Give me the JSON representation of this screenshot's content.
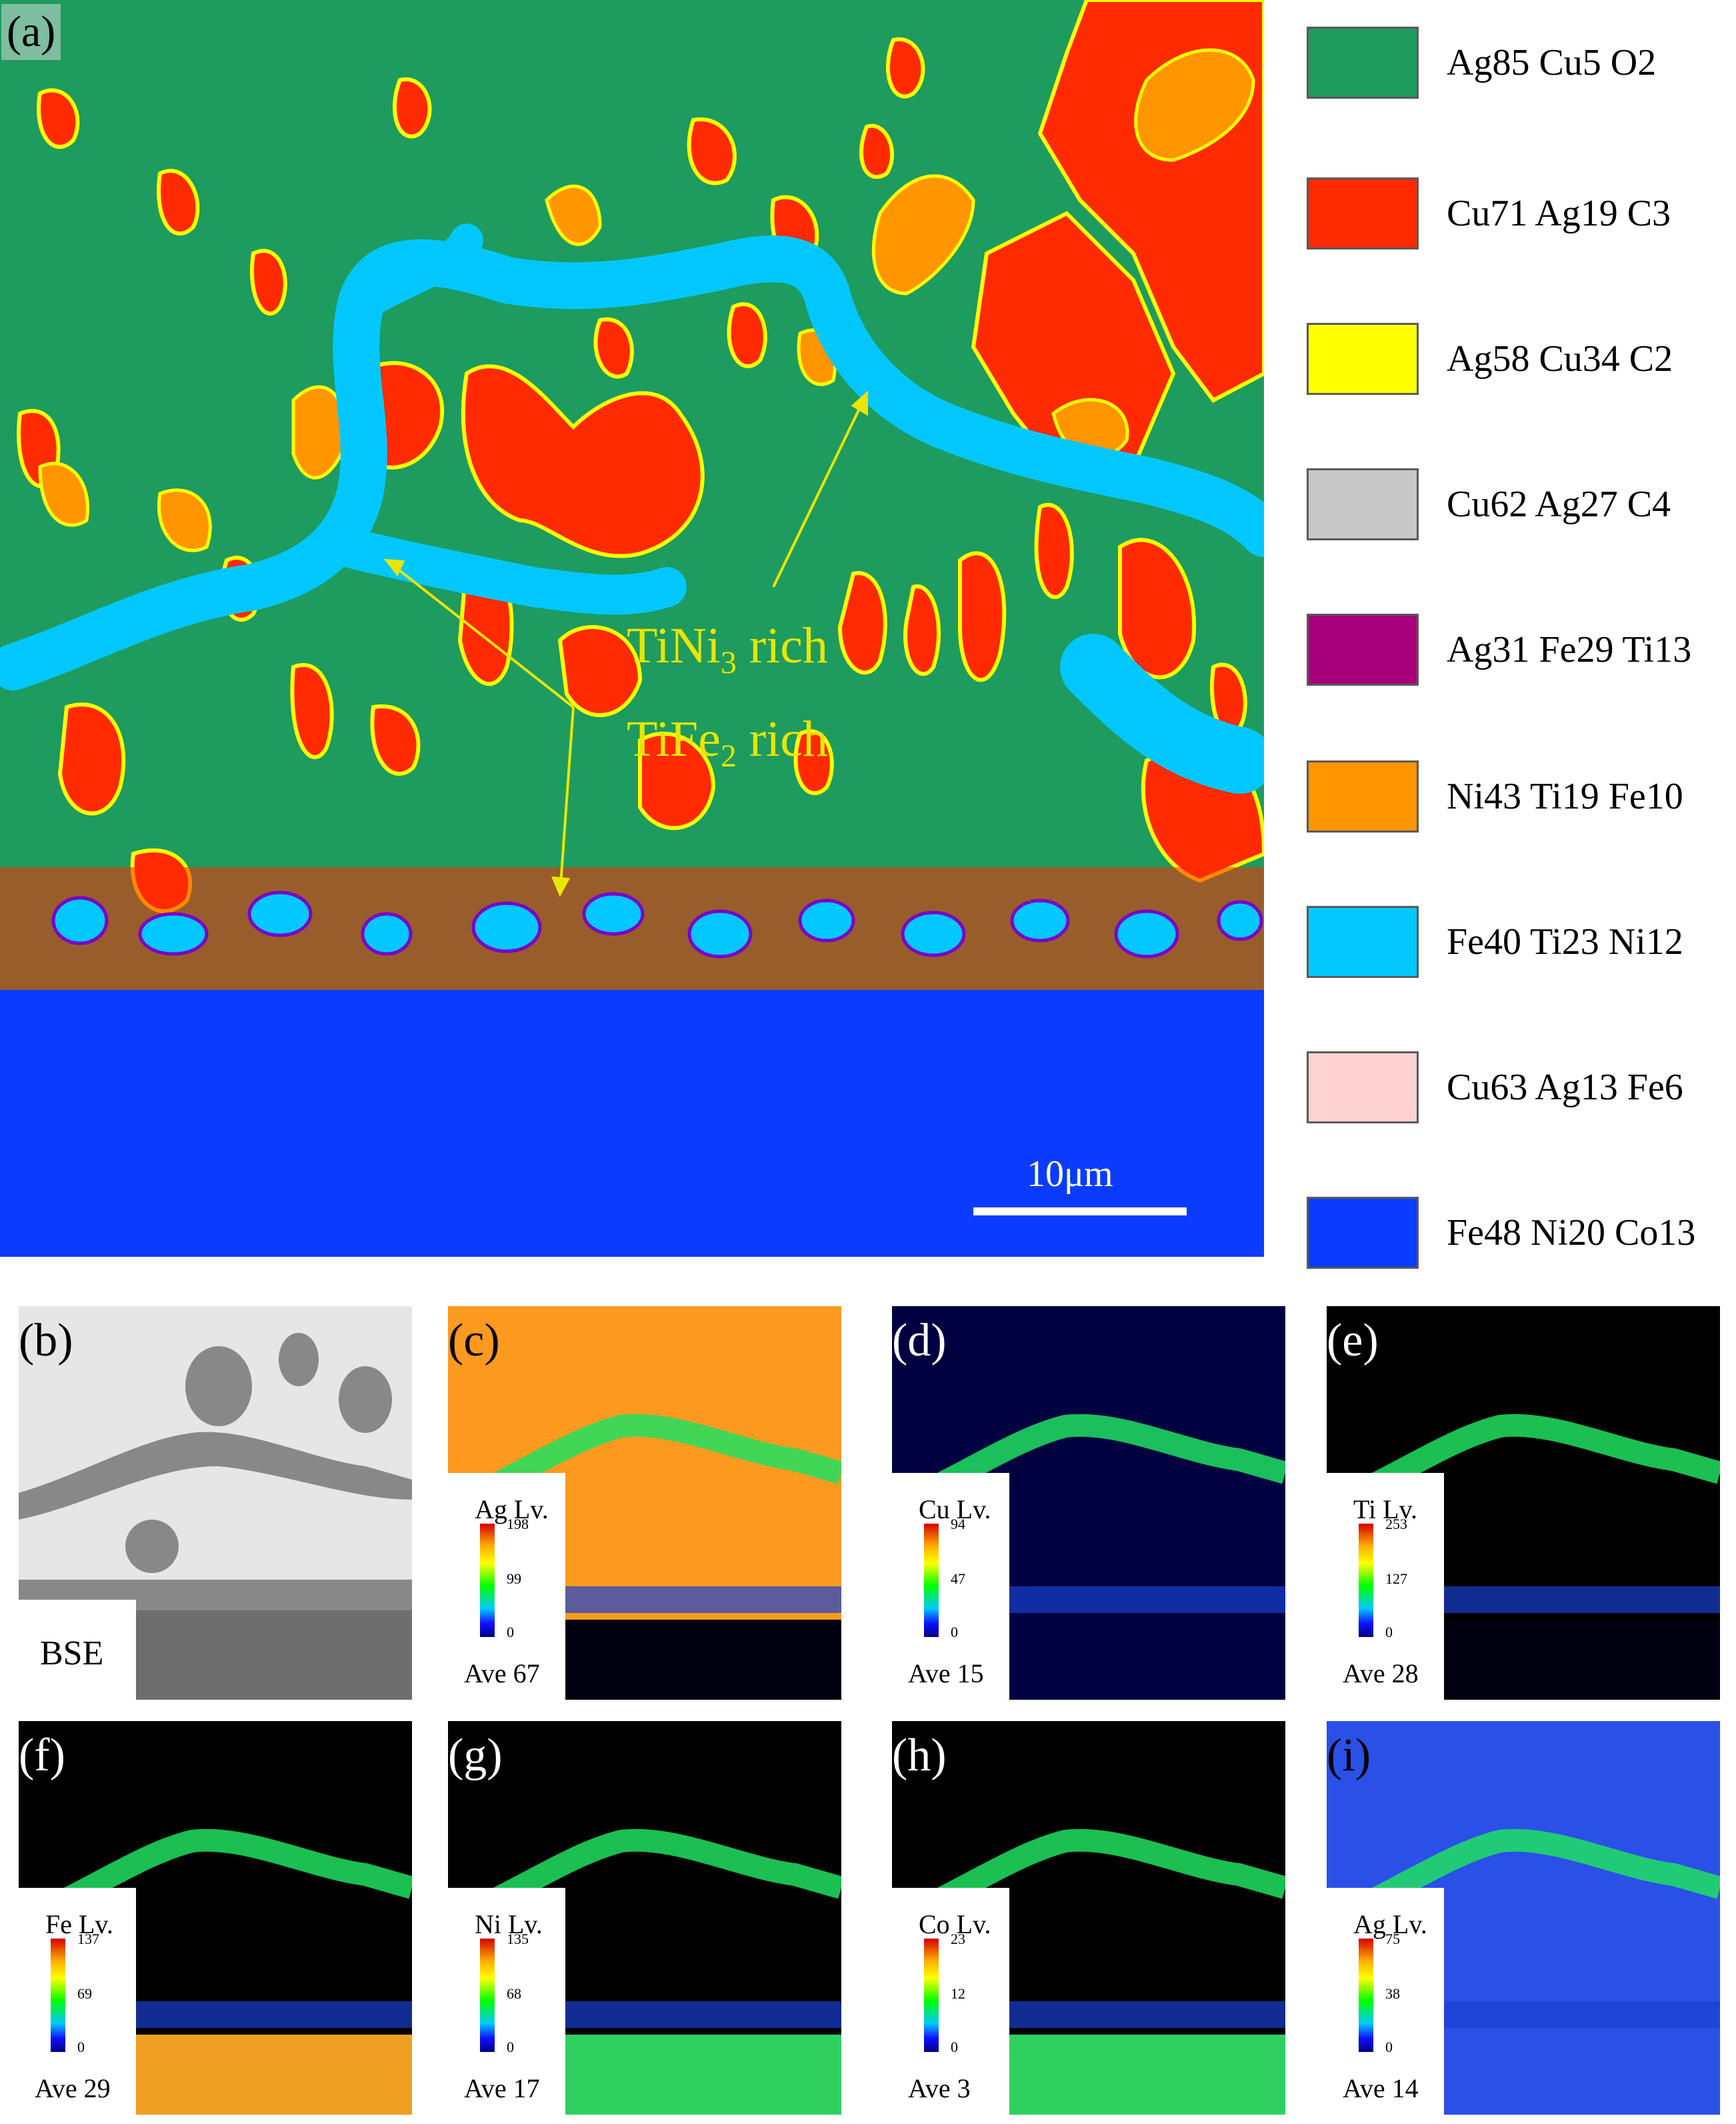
{
  "panel_a": {
    "label": "(a)",
    "annotation_1": "TiNi",
    "annotation_1_sub": "3",
    "annotation_1_suffix": " rich",
    "annotation_2": "TiFe",
    "annotation_2_sub": "2",
    "annotation_2_suffix": " rich",
    "scale_label": "10μm"
  },
  "legend": [
    {
      "label": "Ag85  Cu5  O2",
      "color": "#1e9b5f"
    },
    {
      "label": "Cu71  Ag19  C3",
      "color": "#ff2a00"
    },
    {
      "label": "Ag58  Cu34  C2",
      "color": "#ffff00"
    },
    {
      "label": "Cu62  Ag27  C4",
      "color": "#c8c8c8"
    },
    {
      "label": "Ag31  Fe29  Ti13",
      "color": "#a8007a"
    },
    {
      "label": "Ni43  Ti19  Fe10",
      "color": "#ff9600"
    },
    {
      "label": "Fe40  Ti23  Ni12",
      "color": "#00c8ff"
    },
    {
      "label": "Cu63  Ag13  Fe6",
      "color": "#ffd2d2"
    },
    {
      "label": "Fe48  Ni20  Co13",
      "color": "#0a3cff"
    }
  ],
  "maps": {
    "b": {
      "label": "(b)",
      "caption": "BSE"
    },
    "c": {
      "label": "(c)",
      "element": "Ag Lv.",
      "max": "198",
      "mid": "99",
      "min": "0",
      "ave": "Ave 67"
    },
    "d": {
      "label": "(d)",
      "element": "Cu Lv.",
      "max": "94",
      "mid": "47",
      "min": "0",
      "ave": "Ave 15"
    },
    "e": {
      "label": "(e)",
      "element": "Ti Lv.",
      "max": "253",
      "mid": "127",
      "min": "0",
      "ave": "Ave 28"
    },
    "f": {
      "label": "(f)",
      "element": "Fe Lv.",
      "max": "137",
      "mid": "69",
      "min": "0",
      "ave": "Ave 29"
    },
    "g": {
      "label": "(g)",
      "element": "Ni Lv.",
      "max": "135",
      "mid": "68",
      "min": "0",
      "ave": "Ave 17"
    },
    "h": {
      "label": "(h)",
      "element": "Co Lv.",
      "max": "23",
      "mid": "12",
      "min": "0",
      "ave": "Ave 3"
    },
    "i": {
      "label": "(i)",
      "element": "Ag Lv.",
      "max": "75",
      "mid": "38",
      "min": "0",
      "ave": "Ave 14"
    }
  }
}
